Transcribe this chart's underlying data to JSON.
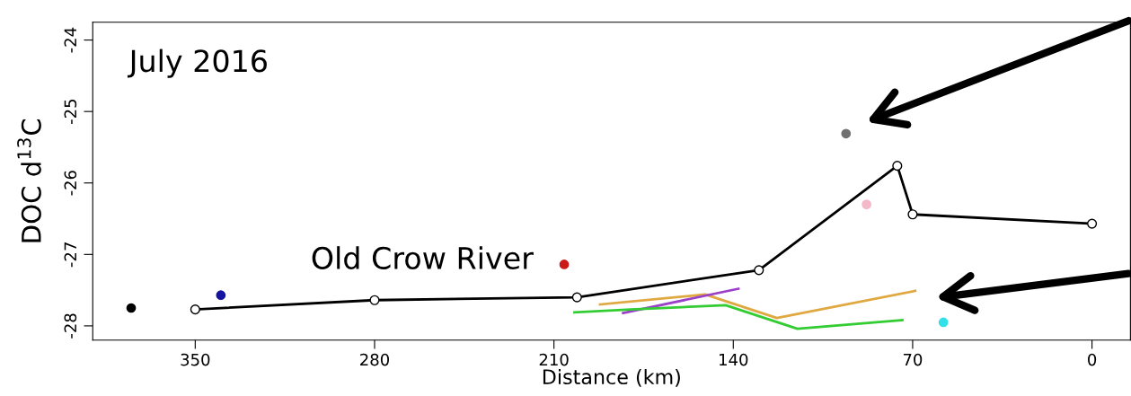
{
  "chart_data": {
    "type": "line",
    "xlabel": "Distance (km)",
    "ylabel": "DOC d$^{13}$C",
    "annotations": [
      "July 2016",
      "Old Crow River"
    ],
    "xlim": [
      390,
      -15
    ],
    "xticks": [
      350,
      280,
      210,
      140,
      70,
      0
    ],
    "ylim": [
      -28.2,
      -23.75
    ],
    "yticks": [
      -24,
      -25,
      -26,
      -27,
      -28
    ],
    "grid": false,
    "legend": false,
    "series": [
      {
        "color": "#000000",
        "marker": "circle",
        "x": [
          350,
          280,
          201,
          130,
          76,
          70,
          0
        ],
        "values": [
          -27.77,
          -27.64,
          -27.6,
          -27.22,
          -25.76,
          -26.44,
          -26.57
        ]
      },
      {
        "color": "#e0a840",
        "marker": "none",
        "x": [
          192,
          151,
          123,
          69
        ],
        "values": [
          -27.7,
          -27.56,
          -27.89,
          -27.51
        ]
      },
      {
        "color": "#9b40c8",
        "marker": "none",
        "x": [
          183,
          138
        ],
        "values": [
          -27.82,
          -27.48
        ]
      },
      {
        "color": "#33cc33",
        "marker": "none",
        "x": [
          202,
          180,
          143,
          115,
          74
        ],
        "values": [
          -27.81,
          -27.77,
          -27.71,
          -28.04,
          -27.92
        ]
      },
      {
        "type": "scatter",
        "color": "#000000",
        "x": [
          375
        ],
        "values": [
          -27.75
        ]
      },
      {
        "type": "scatter",
        "color": "#1414a0",
        "x": [
          340
        ],
        "values": [
          -27.57
        ]
      },
      {
        "type": "scatter",
        "color": "#cc1a1a",
        "x": [
          206
        ],
        "values": [
          -27.14
        ]
      },
      {
        "type": "scatter",
        "color": "#707070",
        "x": [
          96
        ],
        "values": [
          -25.31
        ]
      },
      {
        "type": "scatter",
        "color": "#f4b8c8",
        "x": [
          88
        ],
        "values": [
          -26.3
        ]
      },
      {
        "type": "scatter",
        "color": "#33e0e8",
        "x": [
          58
        ],
        "values": [
          -27.95
        ]
      }
    ]
  }
}
